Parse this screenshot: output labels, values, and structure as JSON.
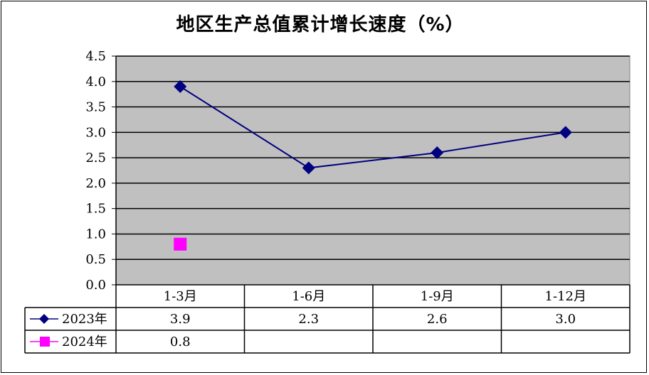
{
  "chart_data": {
    "type": "line",
    "title": "地区生产总值累计增长速度（%）",
    "categories": [
      "1-3月",
      "1-6月",
      "1-9月",
      "1-12月"
    ],
    "ylim": [
      0,
      4.5
    ],
    "ytick_step": 0.5,
    "yticks": [
      "0.0",
      "0.5",
      "1.0",
      "1.5",
      "2.0",
      "2.5",
      "3.0",
      "3.5",
      "4.0",
      "4.5"
    ],
    "grid": true,
    "plot_background": "#c0c0c0",
    "legend_placement": "data-table-left",
    "series": [
      {
        "name": "2023年",
        "values": [
          3.9,
          2.3,
          2.6,
          3.0
        ],
        "labels": [
          "3.9",
          "2.3",
          "2.6",
          "3.0"
        ],
        "color": "#000080",
        "marker": "diamond"
      },
      {
        "name": "2024年",
        "values": [
          0.8,
          null,
          null,
          null
        ],
        "labels": [
          "0.8",
          "",
          "",
          ""
        ],
        "color": "#ff00ff",
        "marker": "square"
      }
    ]
  }
}
